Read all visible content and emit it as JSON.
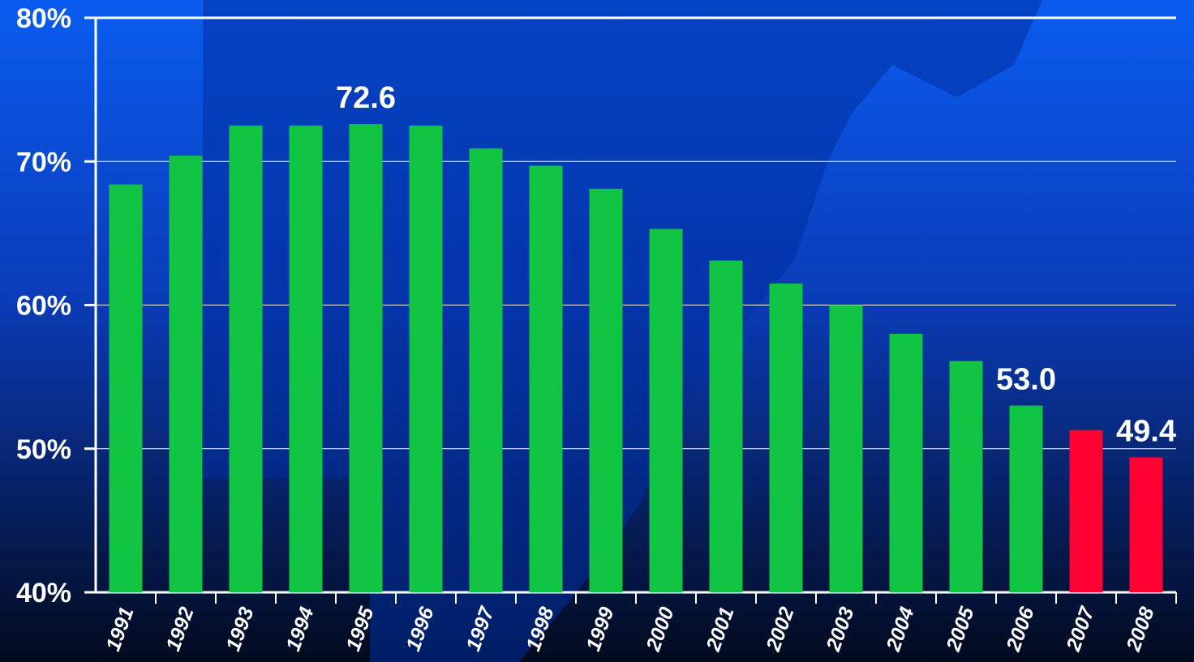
{
  "chart_data": {
    "type": "bar",
    "categories": [
      "1991",
      "1992",
      "1993",
      "1994",
      "1995",
      "1996",
      "1997",
      "1998",
      "1999",
      "2000",
      "2001",
      "2002",
      "2003",
      "2004",
      "2005",
      "2006",
      "2007",
      "2008"
    ],
    "values": [
      68.4,
      70.4,
      72.5,
      72.5,
      72.6,
      72.5,
      70.9,
      69.7,
      68.1,
      65.3,
      63.1,
      61.5,
      60.0,
      58.0,
      56.1,
      53.0,
      51.3,
      49.4
    ],
    "value_labels": [
      null,
      null,
      null,
      null,
      "72.6",
      null,
      null,
      null,
      null,
      null,
      null,
      null,
      null,
      null,
      null,
      "53.0",
      null,
      "49.4"
    ],
    "colors": [
      "#12c443",
      "#12c443",
      "#12c443",
      "#12c443",
      "#12c443",
      "#12c443",
      "#12c443",
      "#12c443",
      "#12c443",
      "#12c443",
      "#12c443",
      "#12c443",
      "#12c443",
      "#12c443",
      "#12c443",
      "#12c443",
      "#ff0033",
      "#ff0033"
    ],
    "ylim": [
      40,
      80
    ],
    "yticks": [
      {
        "value": 40,
        "label": "40%"
      },
      {
        "value": 50,
        "label": "50%"
      },
      {
        "value": 60,
        "label": "60%"
      },
      {
        "value": 70,
        "label": "70%"
      },
      {
        "value": 80,
        "label": "80%"
      }
    ],
    "grid": true
  }
}
